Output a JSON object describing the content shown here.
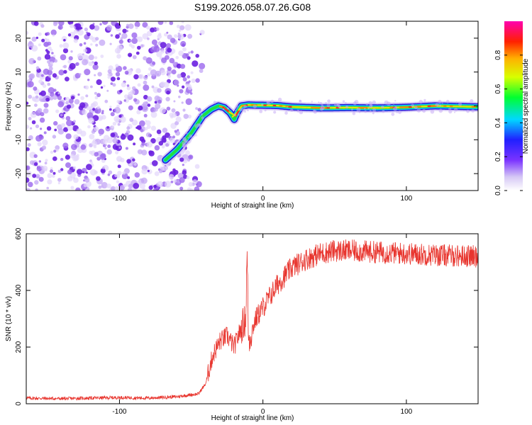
{
  "title": "S199.2026.058.07.26.G08",
  "chart_data": [
    {
      "type": "heatmap",
      "title": "S199.2026.058.07.26.G08",
      "xlabel": "Height of straight line (km)",
      "ylabel": "Frequency (Hz)",
      "xlim": [
        -165,
        150
      ],
      "ylim": [
        -25,
        25
      ],
      "xticks": [
        -100,
        0,
        100
      ],
      "yticks": [
        -20,
        -10,
        0,
        10,
        20
      ],
      "ridge": {
        "x": [
          -68,
          -60,
          -50,
          -42,
          -36,
          -31,
          -27,
          -23,
          -20,
          -18,
          -15,
          -10,
          -5,
          0,
          10,
          20,
          40,
          60,
          80,
          100,
          120,
          150
        ],
        "y": [
          -16,
          -13,
          -8,
          -3,
          -1,
          0,
          -0.5,
          -2,
          -4,
          -2,
          0,
          0.3,
          0.2,
          0.2,
          0.1,
          -0.3,
          -0.6,
          -0.5,
          -0.6,
          -0.4,
          0,
          -0.3
        ]
      },
      "noise_region_x": [
        -165,
        -50
      ],
      "colorbar": {
        "label": "Normalized spectral amplitude",
        "range": [
          0,
          1
        ],
        "ticks": [
          0.0,
          0.2,
          0.4,
          0.6,
          0.8
        ],
        "tick_labels": [
          "0.0",
          "0.2",
          "0.4",
          "0.6",
          "0.8"
        ]
      }
    },
    {
      "type": "line",
      "xlabel": "Height of straight line (km)",
      "ylabel": "SNR (10 * v/v)",
      "xlim": [
        -165,
        150
      ],
      "ylim": [
        0,
        600
      ],
      "xticks": [
        -100,
        0,
        100
      ],
      "yticks": [
        0,
        200,
        400,
        600
      ],
      "color": "#e8352e",
      "series": [
        {
          "name": "SNR",
          "x": [
            -165,
            -140,
            -120,
            -100,
            -80,
            -60,
            -45,
            -40,
            -35,
            -30,
            -25,
            -20,
            -15,
            -12,
            -11,
            -10,
            -5,
            0,
            10,
            20,
            30,
            40,
            50,
            60,
            80,
            100,
            120,
            150
          ],
          "values": [
            20,
            18,
            20,
            22,
            20,
            25,
            35,
            70,
            170,
            220,
            240,
            200,
            270,
            300,
            530,
            220,
            300,
            340,
            420,
            480,
            510,
            530,
            540,
            540,
            535,
            530,
            525,
            520
          ]
        }
      ]
    }
  ]
}
